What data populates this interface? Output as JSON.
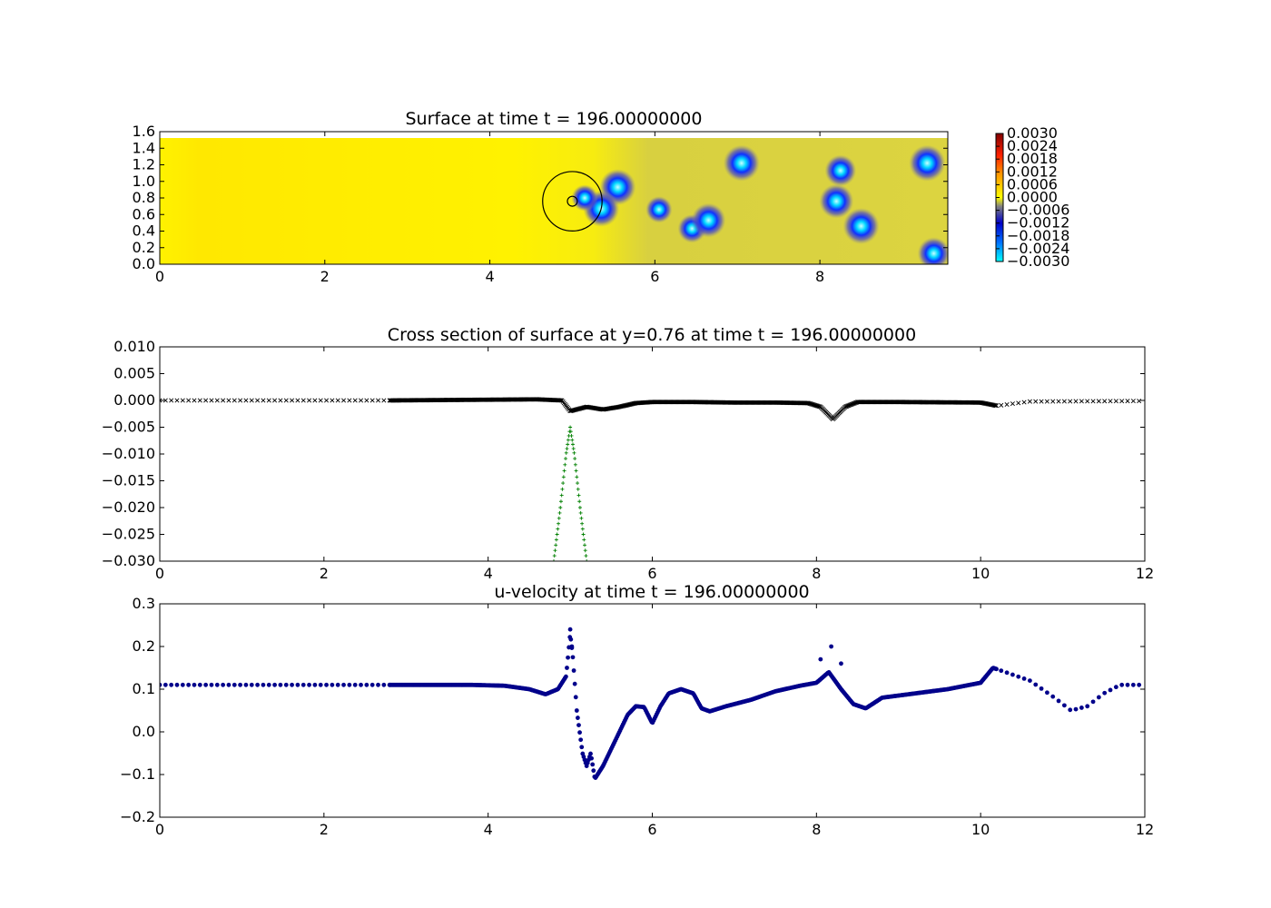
{
  "chart_data": [
    {
      "type": "heatmap",
      "title": "Surface at time t =   196.00000000",
      "xlim": [
        0,
        9.55
      ],
      "ylim": [
        0,
        1.6
      ],
      "xticks": [
        "0",
        "2",
        "4",
        "6",
        "8"
      ],
      "yticks": [
        "0.0",
        "0.2",
        "0.4",
        "0.6",
        "0.8",
        "1.0",
        "1.2",
        "1.4",
        "1.6"
      ],
      "field_extent_y": [
        0,
        1.52
      ],
      "colorbar": {
        "range": [
          -0.003,
          0.003
        ],
        "ticks": [
          "0.0030",
          "0.0024",
          "0.0018",
          "0.0012",
          "0.0006",
          "0.0000",
          "−0.0006",
          "−0.0012",
          "−0.0018",
          "−0.0024",
          "−0.0030"
        ]
      },
      "blobs": [
        {
          "x": 5.55,
          "y": 0.93,
          "depth": -0.003
        },
        {
          "x": 5.35,
          "y": 0.67,
          "depth": -0.003
        },
        {
          "x": 5.15,
          "y": 0.8,
          "depth": -0.002
        },
        {
          "x": 6.05,
          "y": 0.66,
          "depth": -0.002
        },
        {
          "x": 6.45,
          "y": 0.43,
          "depth": -0.0022
        },
        {
          "x": 6.65,
          "y": 0.53,
          "depth": -0.0028
        },
        {
          "x": 7.05,
          "y": 1.22,
          "depth": -0.003
        },
        {
          "x": 8.25,
          "y": 1.13,
          "depth": -0.0025
        },
        {
          "x": 8.2,
          "y": 0.76,
          "depth": -0.0028
        },
        {
          "x": 8.5,
          "y": 0.46,
          "depth": -0.003
        },
        {
          "x": 9.3,
          "y": 1.22,
          "depth": -0.003
        },
        {
          "x": 9.38,
          "y": 0.13,
          "depth": -0.0026
        }
      ],
      "body": {
        "cx": 5.0,
        "cy": 0.76,
        "r_outer": 0.36,
        "r_inner": 0.06
      }
    },
    {
      "type": "scatter",
      "title": "Cross section of surface at y=0.76 at time t =   196.00000000",
      "xlim": [
        0,
        12
      ],
      "ylim": [
        -0.03,
        0.01
      ],
      "xticks": [
        "0",
        "2",
        "4",
        "6",
        "8",
        "10",
        "12"
      ],
      "yticks": [
        "0.010",
        "0.005",
        "0.000",
        "−0.005",
        "−0.010",
        "−0.015",
        "−0.020",
        "−0.025",
        "−0.030"
      ],
      "surface_profile": [
        [
          0,
          0.0
        ],
        [
          2.8,
          0.0
        ],
        [
          4.6,
          0.0002
        ],
        [
          4.9,
          0.0
        ],
        [
          5.0,
          -0.002
        ],
        [
          5.2,
          -0.0012
        ],
        [
          5.4,
          -0.0017
        ],
        [
          5.6,
          -0.0012
        ],
        [
          5.8,
          -0.0005
        ],
        [
          6.0,
          -0.0003
        ],
        [
          6.5,
          -0.0003
        ],
        [
          7.0,
          -0.0004
        ],
        [
          7.5,
          -0.0004
        ],
        [
          7.9,
          -0.0005
        ],
        [
          8.05,
          -0.0012
        ],
        [
          8.2,
          -0.0035
        ],
        [
          8.35,
          -0.0012
        ],
        [
          8.5,
          -0.0003
        ],
        [
          9.0,
          -0.0003
        ],
        [
          10.0,
          -0.0004
        ],
        [
          10.2,
          -0.001
        ],
        [
          10.6,
          -0.0002
        ],
        [
          12.0,
          -0.0001
        ]
      ],
      "pressure_profile": [
        [
          4.8,
          -0.03
        ],
        [
          4.88,
          -0.02
        ],
        [
          4.95,
          -0.01
        ],
        [
          5.0,
          -0.005
        ],
        [
          5.05,
          -0.01
        ],
        [
          5.12,
          -0.02
        ],
        [
          5.2,
          -0.03
        ]
      ]
    },
    {
      "type": "scatter",
      "title": "u-velocity at time t =   196.00000000",
      "xlim": [
        0,
        12
      ],
      "ylim": [
        -0.2,
        0.3
      ],
      "xticks": [
        "0",
        "2",
        "4",
        "6",
        "8",
        "10",
        "12"
      ],
      "yticks": [
        "0.3",
        "0.2",
        "0.1",
        "0.0",
        "−0.1",
        "−0.2"
      ],
      "profile": [
        [
          0,
          0.11
        ],
        [
          2.8,
          0.11
        ],
        [
          3.8,
          0.11
        ],
        [
          4.2,
          0.108
        ],
        [
          4.5,
          0.1
        ],
        [
          4.7,
          0.088
        ],
        [
          4.85,
          0.1
        ],
        [
          4.95,
          0.13
        ],
        [
          5.0,
          0.23
        ],
        [
          5.03,
          0.18
        ],
        [
          5.08,
          0.05
        ],
        [
          5.15,
          -0.05
        ],
        [
          5.2,
          -0.08
        ],
        [
          5.25,
          -0.05
        ],
        [
          5.3,
          -0.11
        ],
        [
          5.4,
          -0.08
        ],
        [
          5.5,
          -0.04
        ],
        [
          5.6,
          0.0
        ],
        [
          5.7,
          0.04
        ],
        [
          5.8,
          0.06
        ],
        [
          5.9,
          0.058
        ],
        [
          6.0,
          0.02
        ],
        [
          6.1,
          0.06
        ],
        [
          6.2,
          0.09
        ],
        [
          6.35,
          0.1
        ],
        [
          6.5,
          0.09
        ],
        [
          6.6,
          0.055
        ],
        [
          6.7,
          0.048
        ],
        [
          6.9,
          0.06
        ],
        [
          7.2,
          0.075
        ],
        [
          7.5,
          0.095
        ],
        [
          7.8,
          0.108
        ],
        [
          8.0,
          0.115
        ],
        [
          8.15,
          0.14
        ],
        [
          8.3,
          0.1
        ],
        [
          8.45,
          0.065
        ],
        [
          8.6,
          0.055
        ],
        [
          8.8,
          0.08
        ],
        [
          9.2,
          0.09
        ],
        [
          9.6,
          0.1
        ],
        [
          10.0,
          0.115
        ],
        [
          10.15,
          0.15
        ],
        [
          10.3,
          0.14
        ],
        [
          10.6,
          0.12
        ],
        [
          10.9,
          0.08
        ],
        [
          11.1,
          0.05
        ],
        [
          11.3,
          0.06
        ],
        [
          11.5,
          0.09
        ],
        [
          11.7,
          0.11
        ],
        [
          12.0,
          0.11
        ]
      ],
      "outliers": [
        [
          5.0,
          0.24
        ],
        [
          5.02,
          0.2
        ],
        [
          8.18,
          0.2
        ],
        [
          8.3,
          0.16
        ],
        [
          8.05,
          0.17
        ]
      ]
    }
  ]
}
